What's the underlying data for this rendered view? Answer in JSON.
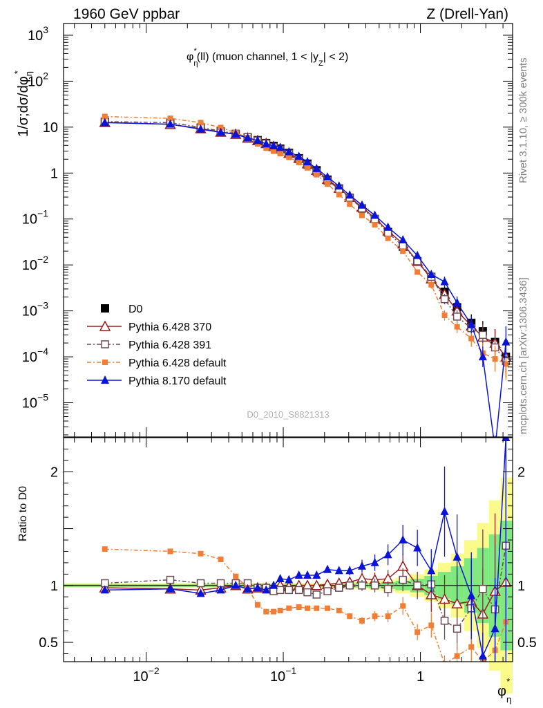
{
  "header": {
    "left": "1960 GeV ppbar",
    "right": "Z (Drell-Yan)",
    "watermark": "D0_2010_S8821313",
    "side_top": "Rivet 3.1.10, ≥ 300k events",
    "side_bottom": "mcplots.cern.ch [arXiv:1306.3436]"
  },
  "chart_data": [
    {
      "type": "scatter",
      "panel": "main",
      "title": "φ*η(ll) (muon channel, 1 < |yZ| < 2)",
      "ylabel": "1/σ;dσ/dφ*η",
      "xlabel": "φ*η",
      "xscale": "log",
      "yscale": "log",
      "xlim": [
        0.0025,
        4.7
      ],
      "ylim": [
        1.8e-06,
        1800
      ],
      "legend_position": "lower-left",
      "x": [
        0.005,
        0.015,
        0.025,
        0.035,
        0.045,
        0.055,
        0.065,
        0.075,
        0.085,
        0.095,
        0.11,
        0.13,
        0.15,
        0.175,
        0.21,
        0.255,
        0.305,
        0.375,
        0.465,
        0.58,
        0.745,
        0.95,
        1.2,
        1.5,
        1.85,
        2.35,
        2.85,
        3.5,
        4.2
      ],
      "series": [
        {
          "name": "D0",
          "color": "#000000",
          "marker": "square-filled",
          "values": [
            13,
            12,
            9.7,
            8.0,
            7.0,
            6.0,
            5.2,
            4.5,
            3.9,
            3.4,
            2.75,
            2.1,
            1.6,
            1.15,
            0.72,
            0.46,
            0.29,
            0.17,
            0.1,
            0.052,
            0.025,
            0.012,
            0.0055,
            0.0026,
            0.0012,
            0.00055,
            0.00036,
            0.00021,
            0.0001
          ]
        },
        {
          "name": "Pythia 6.428 370",
          "color": "#9b1c1c",
          "marker": "triangle-open",
          "values": [
            12.7,
            11.5,
            9.3,
            7.8,
            7.0,
            5.8,
            5.1,
            4.4,
            3.8,
            3.4,
            2.7,
            2.1,
            1.6,
            1.15,
            0.73,
            0.47,
            0.3,
            0.18,
            0.105,
            0.055,
            0.029,
            0.012,
            0.005,
            0.0023,
            0.001,
            0.00047,
            0.00027,
            0.0002,
            0.0001
          ]
        },
        {
          "name": "Pythia 6.428 391",
          "color": "#6b4a52",
          "marker": "square-open",
          "values": [
            13.2,
            12.5,
            9.9,
            8.2,
            7.2,
            6.1,
            5.1,
            4.4,
            3.7,
            3.25,
            2.65,
            2.0,
            1.5,
            1.05,
            0.68,
            0.45,
            0.29,
            0.17,
            0.1,
            0.05,
            0.026,
            0.012,
            0.0055,
            0.0018,
            0.00075,
            0.00042,
            0.0003,
            0.00016,
            8e-05
          ]
        },
        {
          "name": "Pythia 6.428 default",
          "color": "#f07f35",
          "marker": "square-filled",
          "values": [
            17,
            15.5,
            12.5,
            9.8,
            7.5,
            5.9,
            4.3,
            3.5,
            3.0,
            2.65,
            2.2,
            1.7,
            1.3,
            0.92,
            0.58,
            0.34,
            0.21,
            0.12,
            0.075,
            0.038,
            0.02,
            0.007,
            0.0037,
            0.0008,
            0.00045,
            0.00025,
            0.00012,
            9e-05,
            7e-05
          ]
        },
        {
          "name": "Pythia 8.170 default",
          "color": "#0a14d9",
          "marker": "triangle-filled",
          "values": [
            12.5,
            11.6,
            9.0,
            7.7,
            7.0,
            5.8,
            5.1,
            4.3,
            3.9,
            3.6,
            2.9,
            2.3,
            1.75,
            1.25,
            0.82,
            0.52,
            0.33,
            0.2,
            0.12,
            0.066,
            0.035,
            0.016,
            0.0062,
            0.0043,
            0.0015,
            0.0005,
            0.0001,
            1e-06,
            0.00021
          ]
        }
      ]
    },
    {
      "type": "scatter",
      "panel": "ratio",
      "ylabel": "Ratio to D0",
      "xlabel": "φ*η",
      "xscale": "log",
      "xlim": [
        0.0025,
        4.7
      ],
      "ylim": [
        0.33,
        2.3
      ],
      "reference_line": 1,
      "x": [
        0.005,
        0.015,
        0.025,
        0.035,
        0.045,
        0.055,
        0.065,
        0.075,
        0.085,
        0.095,
        0.11,
        0.13,
        0.15,
        0.175,
        0.21,
        0.255,
        0.305,
        0.375,
        0.465,
        0.58,
        0.745,
        0.95,
        1.2,
        1.5,
        1.85,
        2.35,
        2.85,
        3.5,
        4.2
      ],
      "series": [
        {
          "name": "Pythia 6.428 370",
          "color": "#9b1c1c",
          "marker": "triangle-open",
          "values": [
            0.98,
            0.97,
            0.96,
            0.98,
            1.0,
            0.97,
            0.98,
            0.98,
            0.98,
            1.0,
            0.99,
            1.0,
            1.0,
            1.0,
            1.01,
            1.02,
            1.03,
            1.06,
            1.05,
            1.06,
            1.17,
            1.0,
            0.92,
            0.88,
            0.84,
            0.86,
            0.75,
            0.95,
            1.03
          ]
        },
        {
          "name": "Pythia 6.428 391",
          "color": "#6b4a52",
          "marker": "square-open",
          "values": [
            1.02,
            1.05,
            1.02,
            1.02,
            1.02,
            1.02,
            0.98,
            0.98,
            0.95,
            0.96,
            0.96,
            0.96,
            0.94,
            0.92,
            0.95,
            0.98,
            1.0,
            1.0,
            1.0,
            0.97,
            1.05,
            1.0,
            1.01,
            0.69,
            0.62,
            0.8,
            0.97,
            0.79,
            1.35
          ]
        },
        {
          "name": "Pythia 6.428 default",
          "color": "#f07f35",
          "marker": "square-filled",
          "values": [
            1.32,
            1.3,
            1.28,
            1.23,
            1.08,
            0.98,
            0.83,
            0.77,
            0.77,
            0.78,
            0.8,
            0.81,
            0.8,
            0.8,
            0.8,
            0.78,
            0.73,
            0.69,
            0.73,
            0.73,
            0.82,
            0.59,
            0.65,
            0.31,
            0.38,
            0.46,
            0.33,
            0.43,
            0.68
          ]
        },
        {
          "name": "Pythia 8.170 default",
          "color": "#0a14d9",
          "marker": "triangle-filled",
          "values": [
            0.96,
            0.97,
            0.93,
            0.96,
            1.0,
            0.97,
            0.98,
            0.96,
            1.0,
            1.06,
            1.05,
            1.09,
            1.09,
            1.09,
            1.14,
            1.13,
            1.13,
            1.17,
            1.2,
            1.27,
            1.4,
            1.33,
            1.13,
            1.65,
            1.25,
            0.91,
            0.38,
            0.62,
            2.3
          ]
        }
      ]
    }
  ]
}
